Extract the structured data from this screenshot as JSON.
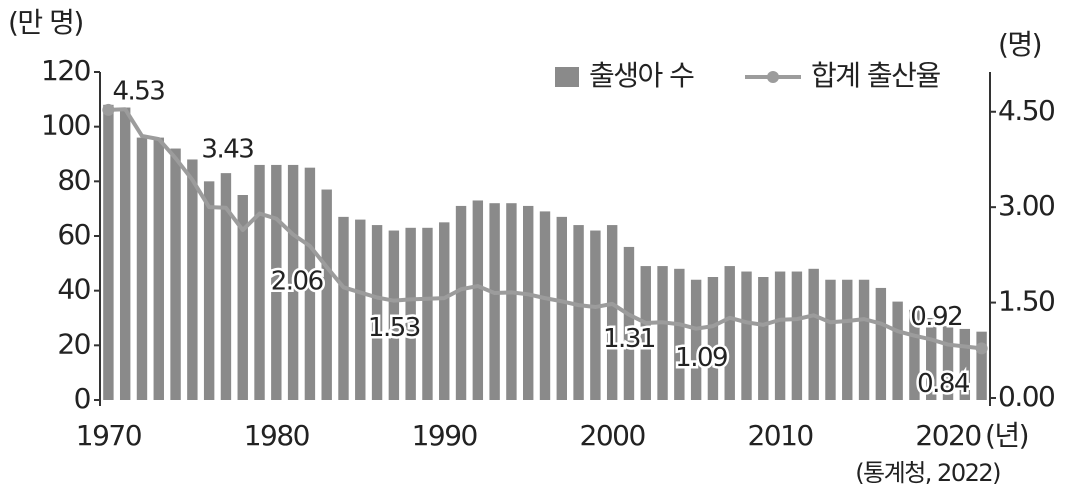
{
  "chart_data": {
    "type": "bar-line",
    "y_axis_label": "(만 명)",
    "y2_axis_label": "(명)",
    "x_axis_label": "(년)",
    "source": "(통계청, 2022)",
    "x": [
      1970,
      1971,
      1972,
      1973,
      1974,
      1975,
      1976,
      1977,
      1978,
      1979,
      1980,
      1981,
      1982,
      1983,
      1984,
      1985,
      1986,
      1987,
      1988,
      1989,
      1990,
      1991,
      1992,
      1993,
      1994,
      1995,
      1996,
      1997,
      1998,
      1999,
      2000,
      2001,
      2002,
      2003,
      2004,
      2005,
      2006,
      2007,
      2008,
      2009,
      2010,
      2011,
      2012,
      2013,
      2014,
      2015,
      2016,
      2017,
      2018,
      2019,
      2020,
      2021,
      2022
    ],
    "series": [
      {
        "name": "출생아 수",
        "color": "#8a8a8a",
        "type": "bar",
        "values": [
          108,
          107,
          96,
          96,
          92,
          88,
          80,
          83,
          75,
          86,
          86,
          86,
          85,
          77,
          67,
          66,
          64,
          62,
          63,
          63,
          65,
          71,
          73,
          72,
          72,
          71,
          69,
          67,
          64,
          62,
          64,
          56,
          49,
          49,
          48,
          44,
          45,
          49,
          47,
          45,
          47,
          47,
          48,
          44,
          44,
          44,
          41,
          36,
          33,
          30,
          27,
          26,
          25
        ]
      },
      {
        "name": "합계 출산율",
        "color": "#9c9c9c",
        "type": "line",
        "axis": "y2",
        "values": [
          4.53,
          4.54,
          4.12,
          4.07,
          3.77,
          3.43,
          3.0,
          2.99,
          2.64,
          2.9,
          2.82,
          2.57,
          2.39,
          2.06,
          1.74,
          1.66,
          1.58,
          1.53,
          1.55,
          1.56,
          1.57,
          1.71,
          1.76,
          1.65,
          1.66,
          1.63,
          1.57,
          1.52,
          1.46,
          1.43,
          1.48,
          1.31,
          1.18,
          1.19,
          1.16,
          1.09,
          1.13,
          1.26,
          1.19,
          1.15,
          1.23,
          1.24,
          1.3,
          1.19,
          1.21,
          1.24,
          1.17,
          1.05,
          0.98,
          0.92,
          0.84,
          0.81,
          0.78
        ],
        "value_labels": [
          "4.53",
          null,
          null,
          null,
          null,
          "3.43",
          null,
          null,
          null,
          null,
          null,
          null,
          null,
          "2.06",
          null,
          null,
          null,
          "1.53",
          null,
          null,
          null,
          null,
          null,
          null,
          null,
          null,
          null,
          null,
          null,
          null,
          null,
          "1.31",
          null,
          null,
          null,
          "1.09",
          null,
          null,
          null,
          null,
          null,
          null,
          null,
          null,
          null,
          null,
          null,
          null,
          null,
          "0.92",
          "0.84",
          null,
          null
        ]
      }
    ],
    "xlim": [
      1969.5,
      2022.5
    ],
    "xticks": [
      1970,
      1980,
      1990,
      2000,
      2010,
      2020
    ],
    "ylim": [
      0,
      120
    ],
    "yticks": [
      0,
      20,
      40,
      60,
      80,
      100,
      120
    ],
    "y2lim": [
      0,
      5.125
    ],
    "y2ticks": [
      {
        "value": 0,
        "label": "0.00"
      },
      {
        "value": 1.5,
        "label": "1.50"
      },
      {
        "value": 3,
        "label": "3.00"
      },
      {
        "value": 4.5,
        "label": "4.50"
      }
    ],
    "legend": "upper right",
    "grid": false
  }
}
